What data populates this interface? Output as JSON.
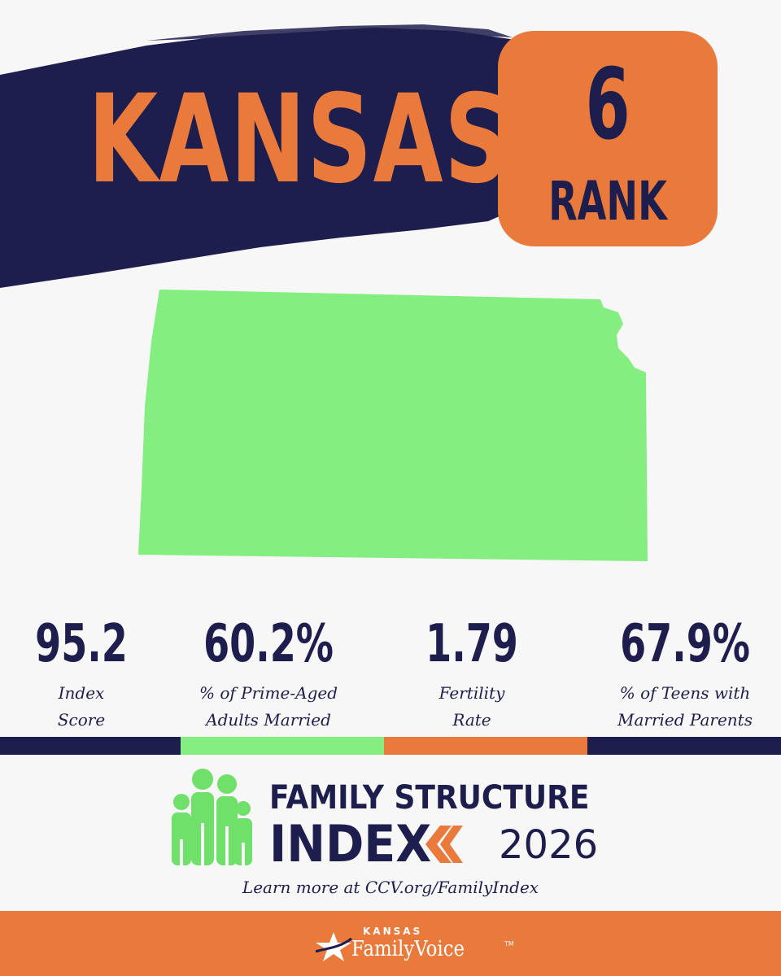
{
  "header": {
    "state_name": "KANSAS",
    "rank_number": "6",
    "rank_label": "RANK"
  },
  "map": {
    "icon": "kansas-state-map",
    "fill_color": "#84ee80"
  },
  "stats": [
    {
      "value": "95.2",
      "label": "Index Score"
    },
    {
      "value": "60.2%",
      "label": "% of Prime-Aged Adults Married"
    },
    {
      "value": "1.79",
      "label": "Fertility Rate"
    },
    {
      "value": "67.9%",
      "label": "% of Teens with Married Parents"
    }
  ],
  "divider_colors": [
    "#1e1e4e",
    "#84ee80",
    "#e97a3c",
    "#1e1e4e"
  ],
  "logo": {
    "line1": "FAMILY STRUCTURE",
    "line2": "INDEX",
    "year": "2026",
    "icon": "family-group-icon"
  },
  "cta": "Learn more at CCV.org/FamilyIndex",
  "footer": {
    "state": "KANSAS",
    "org": "FamilyVoice",
    "trademark": "TM"
  },
  "colors": {
    "navy": "#1e1e4e",
    "orange": "#e97a3c",
    "green": "#84ee80",
    "background": "#f7f7f7"
  }
}
